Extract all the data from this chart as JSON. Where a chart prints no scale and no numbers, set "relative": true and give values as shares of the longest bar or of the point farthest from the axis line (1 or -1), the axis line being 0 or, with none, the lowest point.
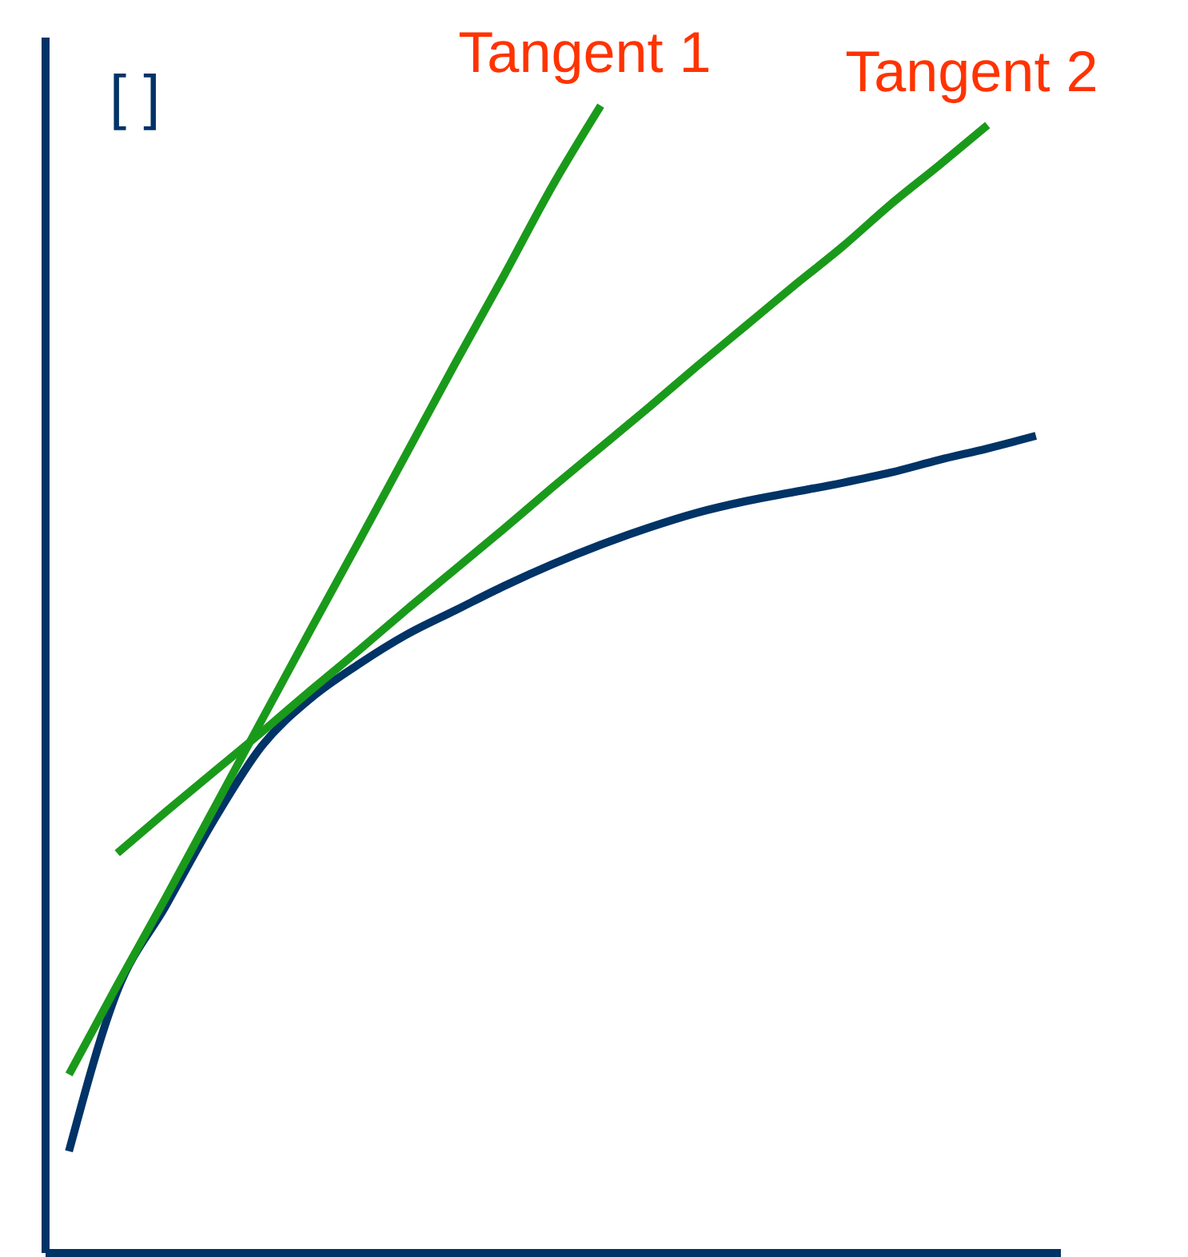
{
  "chart_data": {
    "type": "line",
    "relative": true,
    "ylabel": "[ ]",
    "legend": false,
    "categories": [
      null,
      null,
      null,
      null,
      null,
      null,
      null,
      null,
      null,
      null,
      null,
      null,
      null,
      null,
      null,
      null,
      null,
      null,
      null,
      null,
      null
    ],
    "series": [
      {
        "color": "#003366",
        "values": [
          0.088,
          0.228,
          0.302,
          0.377,
          0.442,
          0.483,
          0.513,
          0.539,
          0.56,
          0.581,
          0.6,
          0.617,
          0.632,
          0.645,
          0.655,
          0.663,
          0.671,
          0.68,
          0.691,
          0.701,
          0.712
        ]
      },
      {
        "name": "Tangent 1",
        "color": "#1a9a1a",
        "values": [
          0.155,
          0.233,
          0.309,
          0.387,
          0.465,
          0.543,
          0.62,
          0.698,
          0.776,
          0.852,
          0.93,
          1,
          null,
          null,
          null,
          null,
          null,
          null,
          null,
          null,
          null
        ]
      },
      {
        "name": "Tangent 2",
        "color": "#1a9a1a",
        "values": [
          null,
          0.348,
          0.384,
          0.419,
          0.454,
          0.49,
          0.525,
          0.561,
          0.596,
          0.631,
          0.667,
          0.702,
          0.737,
          0.773,
          0.808,
          0.843,
          0.877,
          0.914,
          0.948,
          0.983,
          null
        ]
      }
    ]
  }
}
